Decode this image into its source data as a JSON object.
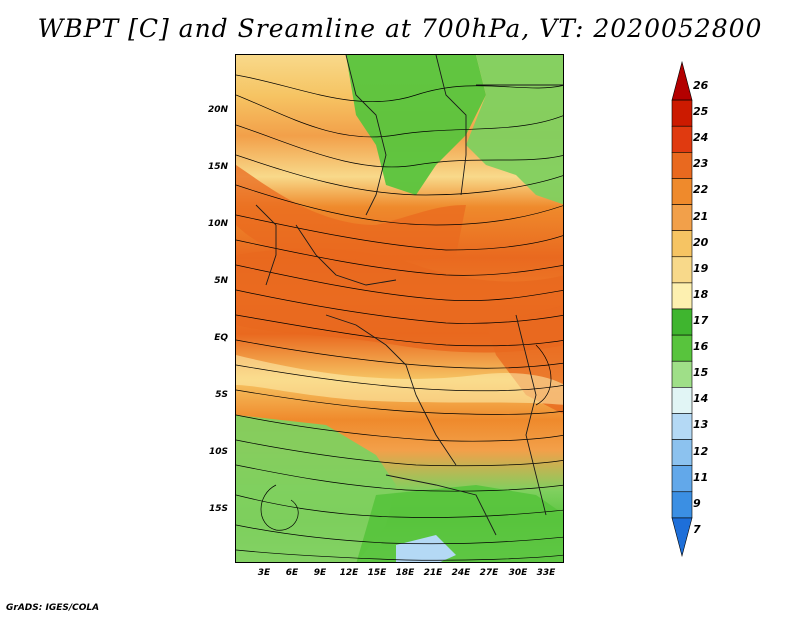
{
  "title": "WBPT [C] and Sreamline at 700hPa, VT: 2020052800",
  "credit": "GrADS: IGES/COLA",
  "map": {
    "variable": "WBPT",
    "units": "C",
    "level": "700hPa",
    "valid_time": "2020052800",
    "lat_labels": [
      "20N",
      "15N",
      "10N",
      "5N",
      "EQ",
      "5S",
      "10S",
      "15S"
    ],
    "lon_labels": [
      "3E",
      "6E",
      "9E",
      "12E",
      "15E",
      "18E",
      "21E",
      "24E",
      "27E",
      "30E",
      "33E"
    ]
  },
  "colorbar": {
    "labels": [
      "26",
      "25",
      "24",
      "23",
      "22",
      "21",
      "20",
      "19",
      "18",
      "17",
      "16",
      "15",
      "14",
      "13",
      "12",
      "11",
      "9",
      "7"
    ],
    "colors": [
      "#b30000",
      "#cc1a00",
      "#e03a10",
      "#e9691f",
      "#ef8a2c",
      "#f2a04a",
      "#f6c463",
      "#f8d98a",
      "#fdf0b0",
      "#3fb52f",
      "#58c43d",
      "#9fdf88",
      "#e1f5f5",
      "#b4d9f5",
      "#8cc2ef",
      "#62a8ea",
      "#3b8fe3",
      "#1e6fd9"
    ]
  }
}
